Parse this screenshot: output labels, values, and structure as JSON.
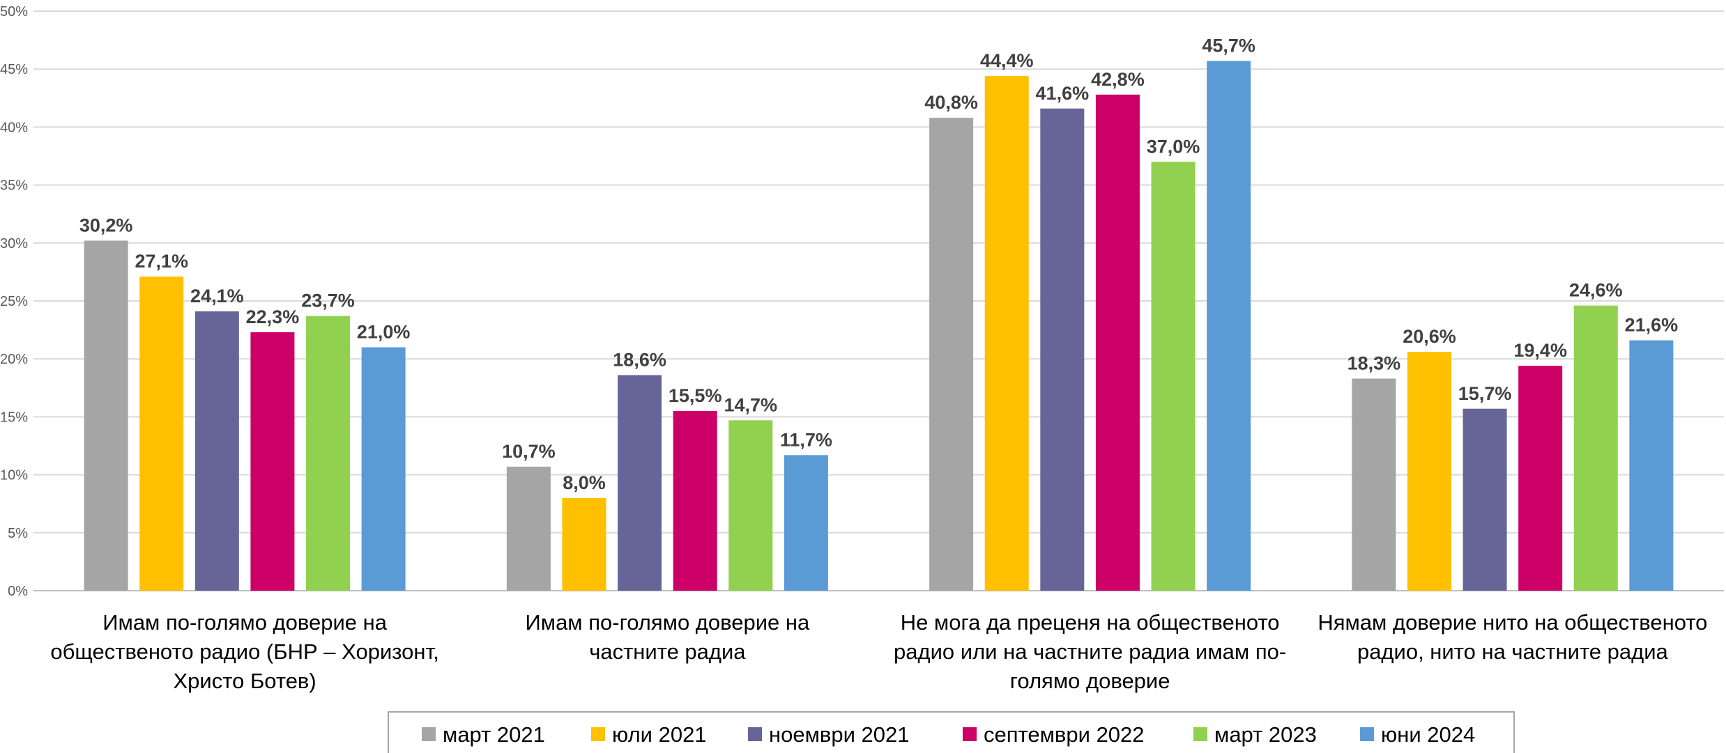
{
  "chart_data": {
    "type": "bar",
    "categories": [
      [
        "Имам по-голямо доверие на",
        "общественото радио (БНР – Хоризонт,",
        "Христо Ботев)"
      ],
      [
        "Имам по-голямо доверие на",
        "частните радиа"
      ],
      [
        "Не мога да преценя на общественото",
        "радио или на частните радиа имам по-",
        "голямо доверие"
      ],
      [
        "Нямам доверие нито на общественото",
        "радио, нито на частните радиа"
      ]
    ],
    "series": [
      {
        "name": "март 2021",
        "color": "#A5A5A5",
        "values": [
          30.2,
          10.7,
          40.8,
          18.3
        ],
        "labels": [
          "30,2%",
          "10,7%",
          "40,8%",
          "18,3%"
        ]
      },
      {
        "name": "юли 2021",
        "color": "#FFC000",
        "values": [
          27.1,
          8.0,
          44.4,
          20.6
        ],
        "labels": [
          "27,1%",
          "8,0%",
          "44,4%",
          "20,6%"
        ]
      },
      {
        "name": "ноември 2021",
        "color": "#676597",
        "values": [
          24.1,
          18.6,
          41.6,
          15.7
        ],
        "labels": [
          "24,1%",
          "18,6%",
          "41,6%",
          "15,7%"
        ]
      },
      {
        "name": "септември 2022",
        "color": "#CC0066",
        "values": [
          22.3,
          15.5,
          42.8,
          19.4
        ],
        "labels": [
          "22,3%",
          "15,5%",
          "42,8%",
          "19,4%"
        ]
      },
      {
        "name": "март 2023",
        "color": "#92D050",
        "values": [
          23.7,
          14.7,
          37.0,
          24.6
        ],
        "labels": [
          "23,7%",
          "14,7%",
          "37,0%",
          "24,6%"
        ]
      },
      {
        "name": "юни 2024",
        "color": "#5B9BD5",
        "values": [
          21.0,
          11.7,
          45.7,
          21.6
        ],
        "labels": [
          "21,0%",
          "11,7%",
          "45,7%",
          "21,6%"
        ]
      }
    ],
    "ylim": [
      0,
      50
    ],
    "yticks": [
      "0%",
      "5%",
      "10%",
      "15%",
      "20%",
      "25%",
      "30%",
      "35%",
      "40%",
      "45%",
      "50%"
    ],
    "grid": true,
    "legend_position": "bottom",
    "title": "",
    "xlabel": "",
    "ylabel": ""
  }
}
